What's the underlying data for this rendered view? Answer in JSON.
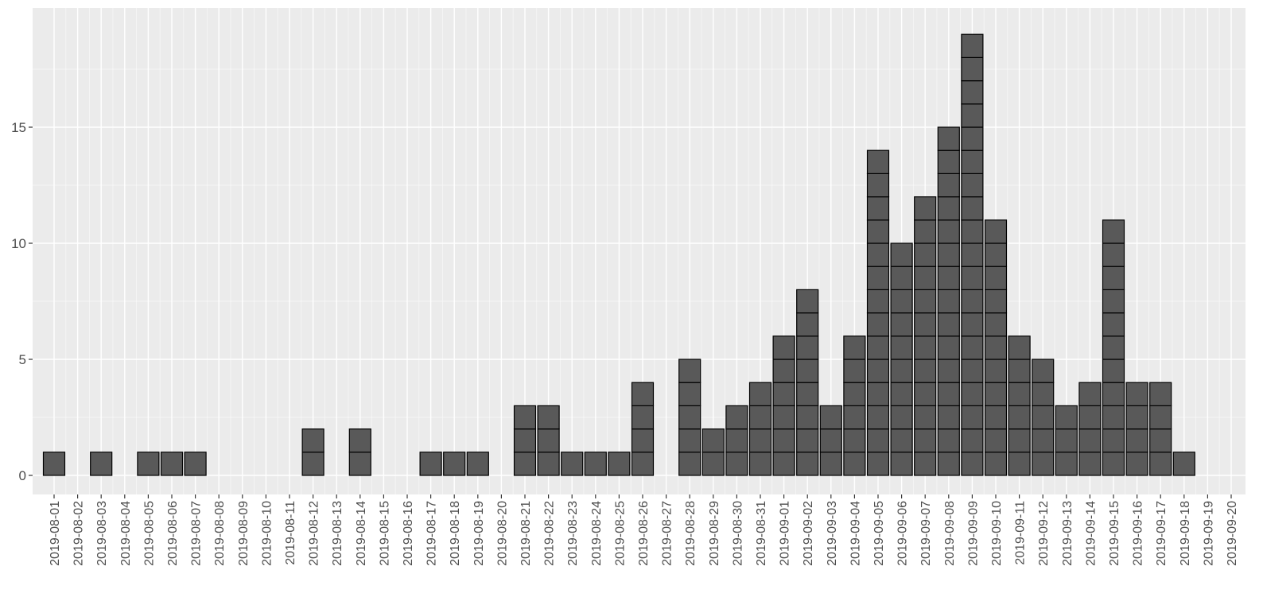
{
  "chart_data": {
    "type": "bar",
    "style": "stacked-unit-blocks",
    "title": "",
    "xlabel": "",
    "ylabel": "",
    "ylim": [
      -0.8,
      19.5
    ],
    "yticks": [
      0,
      5,
      10,
      15
    ],
    "grid": true,
    "colors": {
      "bar_fill": "#595959",
      "bar_stroke": "#000000",
      "panel": "#ebebeb",
      "grid": "#ffffff"
    },
    "categories": [
      "2019-08-01",
      "2019-08-02",
      "2019-08-03",
      "2019-08-04",
      "2019-08-05",
      "2019-08-06",
      "2019-08-07",
      "2019-08-08",
      "2019-08-09",
      "2019-08-10",
      "2019-08-11",
      "2019-08-12",
      "2019-08-13",
      "2019-08-14",
      "2019-08-15",
      "2019-08-16",
      "2019-08-17",
      "2019-08-18",
      "2019-08-19",
      "2019-08-20",
      "2019-08-21",
      "2019-08-22",
      "2019-08-23",
      "2019-08-24",
      "2019-08-25",
      "2019-08-26",
      "2019-08-27",
      "2019-08-28",
      "2019-08-29",
      "2019-08-30",
      "2019-08-31",
      "2019-09-01",
      "2019-09-02",
      "2019-09-03",
      "2019-09-04",
      "2019-09-05",
      "2019-09-06",
      "2019-09-07",
      "2019-09-08",
      "2019-09-09",
      "2019-09-10",
      "2019-09-11",
      "2019-09-12",
      "2019-09-13",
      "2019-09-14",
      "2019-09-15",
      "2019-09-16",
      "2019-09-17",
      "2019-09-18",
      "2019-09-19",
      "2019-09-20"
    ],
    "values": [
      1,
      0,
      1,
      0,
      1,
      1,
      1,
      0,
      0,
      0,
      0,
      2,
      0,
      2,
      0,
      0,
      1,
      1,
      1,
      0,
      3,
      3,
      1,
      1,
      1,
      4,
      0,
      5,
      2,
      3,
      4,
      6,
      8,
      3,
      6,
      14,
      10,
      12,
      15,
      19,
      11,
      6,
      5,
      3,
      4,
      11,
      4,
      4,
      1,
      0,
      0
    ]
  }
}
